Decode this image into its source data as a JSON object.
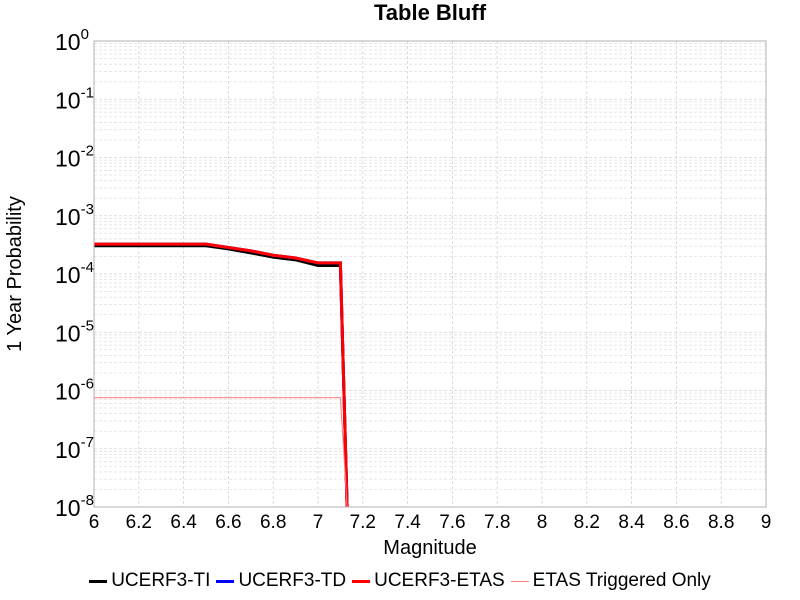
{
  "chart_data": {
    "type": "line",
    "title": "Table Bluff",
    "xlabel": "Magnitude",
    "ylabel": "1 Year Probability",
    "xlim": [
      6,
      9
    ],
    "ylim": [
      1e-08,
      1
    ],
    "yscale": "log",
    "grid": true,
    "legend_position": "bottom",
    "x_ticks": [
      "6",
      "6.2",
      "6.4",
      "6.6",
      "6.8",
      "7",
      "7.2",
      "7.4",
      "7.6",
      "7.8",
      "8",
      "8.2",
      "8.4",
      "8.6",
      "8.8",
      "9"
    ],
    "y_ticks": [
      {
        "base": "10",
        "exp": "0"
      },
      {
        "base": "10",
        "exp": "-1"
      },
      {
        "base": "10",
        "exp": "-2"
      },
      {
        "base": "10",
        "exp": "-3"
      },
      {
        "base": "10",
        "exp": "-4"
      },
      {
        "base": "10",
        "exp": "-5"
      },
      {
        "base": "10",
        "exp": "-6"
      },
      {
        "base": "10",
        "exp": "-7"
      },
      {
        "base": "10",
        "exp": "-8"
      }
    ],
    "series": [
      {
        "name": "UCERF3-TI",
        "color": "#000000",
        "width": 3,
        "x": [
          6.0,
          6.1,
          6.2,
          6.3,
          6.4,
          6.5,
          6.6,
          6.7,
          6.8,
          6.9,
          7.0,
          7.1,
          7.13
        ],
        "y": [
          0.000305,
          0.000305,
          0.000305,
          0.000305,
          0.000305,
          0.000305,
          0.00027,
          0.00023,
          0.000195,
          0.000175,
          0.00014,
          0.00014,
          1e-08
        ]
      },
      {
        "name": "UCERF3-TD",
        "color": "#0000ff",
        "width": 3,
        "x": [
          6.0,
          6.1,
          6.2,
          6.3,
          6.4,
          6.5,
          6.6,
          6.7,
          6.8,
          6.9,
          7.0,
          7.1,
          7.13
        ],
        "y": [
          0.000325,
          0.000325,
          0.000325,
          0.000325,
          0.000325,
          0.000325,
          0.000285,
          0.00025,
          0.00021,
          0.000188,
          0.000155,
          0.000155,
          1e-08
        ]
      },
      {
        "name": "UCERF3-ETAS",
        "color": "#ff0000",
        "width": 3,
        "x": [
          6.0,
          6.1,
          6.2,
          6.3,
          6.4,
          6.5,
          6.6,
          6.7,
          6.8,
          6.9,
          7.0,
          7.1,
          7.13
        ],
        "y": [
          0.000325,
          0.000325,
          0.000325,
          0.000325,
          0.000325,
          0.000325,
          0.000285,
          0.00025,
          0.00021,
          0.000188,
          0.000155,
          0.000155,
          1e-08
        ]
      },
      {
        "name": "ETAS Triggered Only",
        "color": "#ff7a7a",
        "width": 1,
        "x": [
          6.0,
          6.1,
          6.2,
          6.3,
          6.4,
          6.5,
          6.6,
          6.7,
          6.8,
          6.9,
          7.0,
          7.1,
          7.13
        ],
        "y": [
          7.5e-07,
          7.5e-07,
          7.5e-07,
          7.5e-07,
          7.5e-07,
          7.5e-07,
          7.5e-07,
          7.5e-07,
          7.5e-07,
          7.5e-07,
          7.5e-07,
          7.5e-07,
          1e-08
        ]
      }
    ]
  }
}
